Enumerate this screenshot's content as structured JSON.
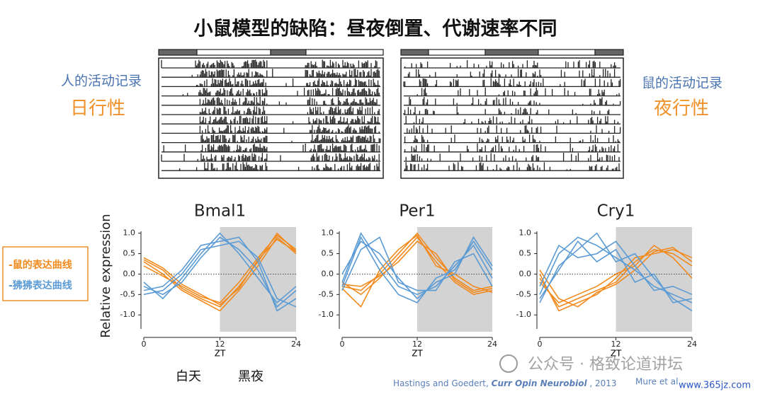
{
  "slide": {
    "title": "小鼠模型的缺陷：昼夜倒置、代谢速率不同",
    "left_caption": "人的活动记录",
    "left_tag": "日行性",
    "right_caption": "鼠的活动记录",
    "right_tag": "夜行性",
    "legend": [
      {
        "text": "-鼠的表达曲线",
        "color": "#f28a1e"
      },
      {
        "text": "-狒狒表达曲线",
        "color": "#5b9bd5"
      }
    ],
    "day_label": "白天",
    "night_label": "黑夜",
    "citation": [
      "Hastings and Goedert, ",
      "Curr Opin Neurobiol",
      " , 2013"
    ],
    "citation2": "Mure et al",
    "watermark": "公众号 · 格致论道讲坛",
    "site": "www.365jz.com"
  },
  "chart_data": [
    {
      "type": "line",
      "title": "Bmal1",
      "y_label": "Relative  expression",
      "x_label": "ZT",
      "x": [
        0,
        3,
        6,
        9,
        12,
        15,
        18,
        21,
        24
      ],
      "xlim": [
        0,
        24
      ],
      "xticks": [
        0,
        12,
        24
      ],
      "ylim": [
        -1.55,
        1.15
      ],
      "yticks": [
        {
          "value": -1,
          "label": "-1.0"
        },
        {
          "value": -0.5,
          "label": "-0.5"
        },
        {
          "value": 0,
          "label": "0.0"
        },
        {
          "value": 0.5,
          "label": "0.5"
        },
        {
          "value": 1,
          "label": "1.0"
        }
      ],
      "shaded_x": [
        12,
        24
      ],
      "series": [
        {
          "color": "#f28a1e",
          "values": [
            0.35,
            0.1,
            -0.35,
            -0.6,
            -0.8,
            -0.3,
            0.3,
            1.0,
            0.55
          ]
        },
        {
          "color": "#f28a1e",
          "values": [
            0.3,
            0.0,
            -0.4,
            -0.65,
            -0.9,
            -0.4,
            0.2,
            0.9,
            0.5
          ]
        },
        {
          "color": "#f28a1e",
          "values": [
            0.2,
            -0.05,
            -0.3,
            -0.55,
            -0.7,
            -0.2,
            0.4,
            0.95,
            0.6
          ]
        },
        {
          "color": "#f28a1e",
          "values": [
            0.4,
            0.15,
            -0.25,
            -0.5,
            -0.75,
            -0.35,
            0.35,
            0.85,
            0.55
          ]
        },
        {
          "color": "#5b9bd5",
          "values": [
            -0.3,
            -0.5,
            -0.2,
            0.4,
            0.9,
            0.6,
            0.1,
            -0.8,
            -0.4
          ]
        },
        {
          "color": "#5b9bd5",
          "values": [
            -0.4,
            -0.3,
            0.1,
            0.7,
            0.8,
            0.9,
            0.3,
            -0.9,
            -0.6
          ]
        },
        {
          "color": "#5b9bd5",
          "values": [
            -0.2,
            -0.6,
            -0.1,
            0.5,
            1.0,
            0.5,
            -0.1,
            -0.7,
            -0.3
          ]
        },
        {
          "color": "#5b9bd5",
          "values": [
            -0.5,
            -0.4,
            0.0,
            0.6,
            0.7,
            0.8,
            0.4,
            -0.6,
            -0.8
          ]
        }
      ]
    },
    {
      "type": "line",
      "title": "Per1",
      "x_label": "ZT",
      "x": [
        0,
        3,
        6,
        9,
        12,
        15,
        18,
        21,
        24
      ],
      "xlim": [
        0,
        24
      ],
      "xticks": [
        0,
        12,
        24
      ],
      "ylim": [
        -1.55,
        1.15
      ],
      "yticks": [
        {
          "value": -1,
          "label": "-1.0"
        },
        {
          "value": -0.5,
          "label": "-0.5"
        },
        {
          "value": 0,
          "label": "0.0"
        },
        {
          "value": 0.5,
          "label": "0.5"
        },
        {
          "value": 1,
          "label": "1.0"
        }
      ],
      "shaded_x": [
        12,
        24
      ],
      "series": [
        {
          "color": "#f28a1e",
          "values": [
            -0.3,
            -0.4,
            0.0,
            0.5,
            1.0,
            0.4,
            -0.1,
            -0.4,
            -0.3
          ]
        },
        {
          "color": "#f28a1e",
          "values": [
            -0.2,
            -0.5,
            -0.1,
            0.4,
            0.9,
            0.3,
            -0.2,
            -0.5,
            -0.4
          ]
        },
        {
          "color": "#f28a1e",
          "values": [
            -0.35,
            -0.8,
            0.1,
            0.6,
            0.95,
            0.2,
            0.0,
            -0.3,
            -0.45
          ]
        },
        {
          "color": "#f28a1e",
          "values": [
            -0.25,
            -0.3,
            -0.05,
            0.3,
            0.8,
            0.5,
            -0.15,
            -0.45,
            -0.35
          ]
        },
        {
          "color": "#5b9bd5",
          "values": [
            -0.2,
            1.0,
            0.3,
            -0.3,
            -0.5,
            -0.3,
            0.2,
            0.7,
            -0.1
          ]
        },
        {
          "color": "#5b9bd5",
          "values": [
            0.0,
            0.8,
            0.5,
            -0.1,
            -0.6,
            -0.2,
            0.0,
            0.9,
            0.2
          ]
        },
        {
          "color": "#5b9bd5",
          "values": [
            -0.4,
            0.6,
            0.9,
            -0.2,
            -0.4,
            -0.4,
            0.3,
            0.5,
            -0.3
          ]
        },
        {
          "color": "#5b9bd5",
          "values": [
            -0.3,
            0.9,
            0.1,
            -0.5,
            -0.7,
            -0.1,
            0.1,
            0.8,
            0.1
          ]
        }
      ]
    },
    {
      "type": "line",
      "title": "Cry1",
      "x_label": "ZT",
      "x": [
        0,
        3,
        6,
        9,
        12,
        15,
        18,
        21,
        24
      ],
      "xlim": [
        0,
        24
      ],
      "xticks": [
        0,
        12,
        24
      ],
      "ylim": [
        -1.55,
        1.15
      ],
      "yticks": [
        {
          "value": -1,
          "label": "-1.0"
        },
        {
          "value": -0.5,
          "label": "-0.5"
        },
        {
          "value": 0,
          "label": "0.0"
        },
        {
          "value": 0.5,
          "label": "0.5"
        },
        {
          "value": 1,
          "label": "1.0"
        }
      ],
      "shaded_x": [
        12,
        24
      ],
      "series": [
        {
          "color": "#f28a1e",
          "values": [
            -0.1,
            -0.8,
            -0.6,
            -0.4,
            -0.2,
            0.3,
            0.6,
            0.5,
            0.2
          ]
        },
        {
          "color": "#f28a1e",
          "values": [
            0.0,
            -0.9,
            -0.7,
            -0.5,
            -0.1,
            0.4,
            0.5,
            0.6,
            0.4
          ]
        },
        {
          "color": "#f28a1e",
          "values": [
            -0.2,
            -0.7,
            -0.5,
            -0.3,
            0.0,
            0.2,
            0.7,
            0.4,
            -0.1
          ]
        },
        {
          "color": "#f28a1e",
          "values": [
            0.1,
            -0.6,
            -0.8,
            -0.45,
            -0.25,
            0.1,
            0.55,
            0.65,
            0.3
          ]
        },
        {
          "color": "#5b9bd5",
          "values": [
            -0.5,
            0.5,
            0.9,
            0.7,
            0.4,
            0.1,
            -0.3,
            -0.5,
            -0.7
          ]
        },
        {
          "color": "#5b9bd5",
          "values": [
            -0.7,
            0.2,
            0.6,
            1.0,
            0.3,
            0.5,
            -0.1,
            -0.6,
            -0.9
          ]
        },
        {
          "color": "#5b9bd5",
          "values": [
            -0.3,
            0.7,
            0.4,
            0.5,
            0.8,
            0.2,
            -0.4,
            -0.3,
            -0.5
          ]
        },
        {
          "color": "#5b9bd5",
          "values": [
            -0.6,
            0.1,
            0.8,
            0.3,
            0.6,
            -0.2,
            0.0,
            -0.7,
            -0.6
          ]
        }
      ]
    }
  ]
}
